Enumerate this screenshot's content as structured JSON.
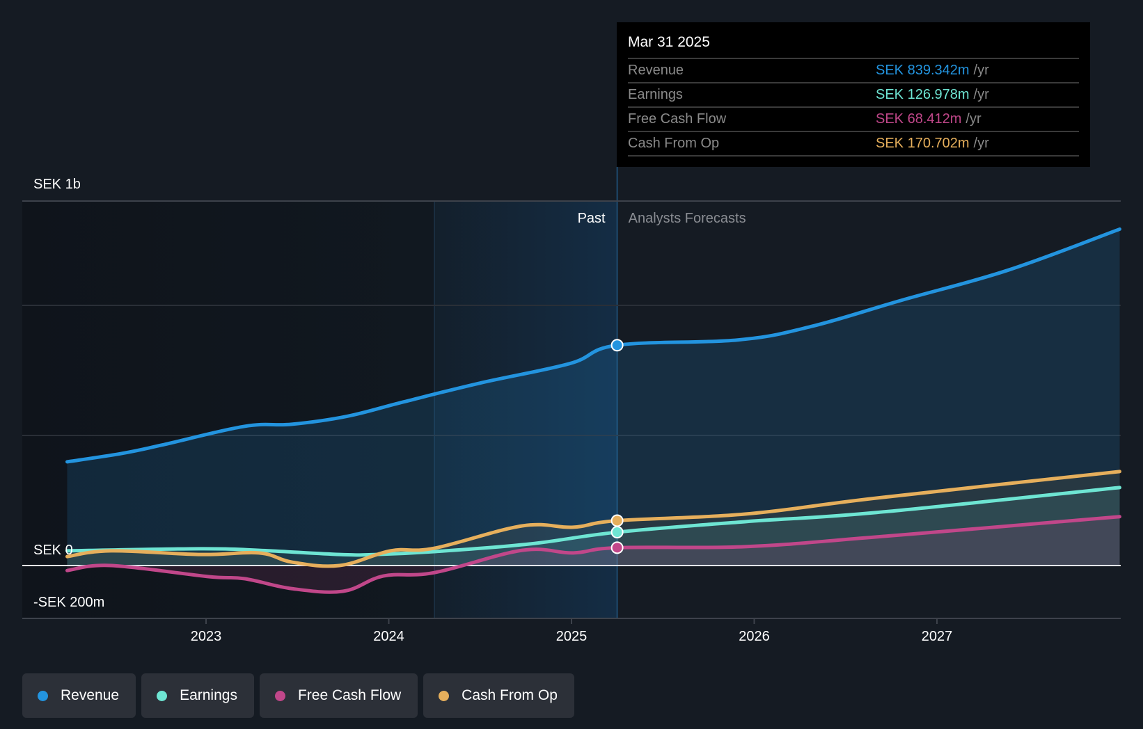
{
  "colors": {
    "background": "#151b23",
    "revenue": "#2394df",
    "earnings": "#6ee5d3",
    "free_cash_flow": "#c1478a",
    "cash_from_op": "#e6af5c",
    "grid": "#3a3e46",
    "zero_line": "#ffffff"
  },
  "tooltip": {
    "date": "Mar 31 2025",
    "rows": [
      {
        "label": "Revenue",
        "value": "SEK 839.342m",
        "unit": "/yr",
        "color": "#2394df"
      },
      {
        "label": "Earnings",
        "value": "SEK 126.978m",
        "unit": "/yr",
        "color": "#6ee5d3"
      },
      {
        "label": "Free Cash Flow",
        "value": "SEK 68.412m",
        "unit": "/yr",
        "color": "#c1478a"
      },
      {
        "label": "Cash From Op",
        "value": "SEK 170.702m",
        "unit": "/yr",
        "color": "#e6af5c"
      }
    ]
  },
  "legend": [
    {
      "label": "Revenue",
      "color": "#2394df"
    },
    {
      "label": "Earnings",
      "color": "#6ee5d3"
    },
    {
      "label": "Free Cash Flow",
      "color": "#c1478a"
    },
    {
      "label": "Cash From Op",
      "color": "#e6af5c"
    }
  ],
  "chart_data": {
    "type": "line",
    "title": "",
    "xlabel": "",
    "ylabel": "",
    "currency": "SEK",
    "y_labels": [
      {
        "label": "SEK 1b",
        "value": 1400
      },
      {
        "label": "SEK 0",
        "value": 0
      },
      {
        "label": "-SEK 200m",
        "value": -200
      }
    ],
    "ylim": [
      -200,
      1400
    ],
    "xlim": [
      2022.24,
      2028.0
    ],
    "x_ticks": [
      2023,
      2024,
      2025,
      2026,
      2027
    ],
    "gridlines": [
      1400,
      1000,
      500,
      0
    ],
    "past_label": "Past",
    "forecast_label": "Analysts Forecasts",
    "past_end": 2025.25,
    "highlight_start": 2024.25,
    "unit": "SEK millions per year",
    "series": [
      {
        "name": "Revenue",
        "key": "revenue",
        "x": [
          2022.24,
          2022.54,
          2022.76,
          2023.21,
          2023.47,
          2023.77,
          2024.08,
          2024.5,
          2024.99,
          2025.25,
          2025.91,
          2026.31,
          2026.81,
          2027.39,
          2028.0
        ],
        "values": [
          395,
          427,
          459,
          530,
          538,
          568,
          623,
          695,
          769,
          839,
          859,
          910,
          1011,
          1125,
          1281
        ]
      },
      {
        "name": "Earnings",
        "key": "earnings",
        "x": [
          2022.24,
          2022.97,
          2023.29,
          2023.73,
          2023.93,
          2024.25,
          2024.77,
          2025.25,
          2025.95,
          2026.67,
          2028.0
        ],
        "values": [
          56,
          64,
          58,
          42,
          42,
          53,
          82,
          127,
          167,
          202,
          297
        ]
      },
      {
        "name": "Free Cash Flow",
        "key": "free_cash_flow",
        "x": [
          2022.24,
          2022.48,
          2023.01,
          2023.21,
          2023.47,
          2023.75,
          2023.97,
          2024.25,
          2024.73,
          2025.01,
          2025.25,
          2025.95,
          2026.67,
          2028.0
        ],
        "values": [
          -19,
          0,
          -42,
          -50,
          -88,
          -98,
          -40,
          -27,
          58,
          48,
          68,
          72,
          109,
          186
        ]
      },
      {
        "name": "Cash From Op",
        "key": "cash_from_op",
        "x": [
          2022.24,
          2022.48,
          2022.97,
          2023.29,
          2023.47,
          2023.73,
          2024.01,
          2024.25,
          2024.73,
          2025.01,
          2025.25,
          2025.95,
          2026.67,
          2028.0
        ],
        "values": [
          34,
          56,
          42,
          48,
          13,
          0,
          56,
          66,
          151,
          146,
          171,
          196,
          257,
          358
        ]
      }
    ]
  }
}
